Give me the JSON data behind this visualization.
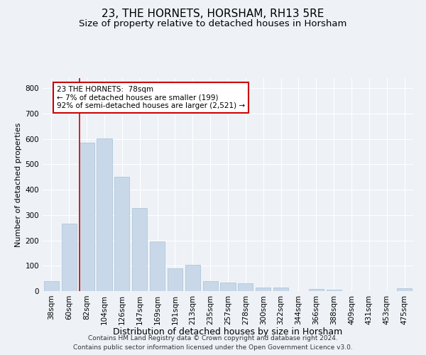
{
  "title": "23, THE HORNETS, HORSHAM, RH13 5RE",
  "subtitle": "Size of property relative to detached houses in Horsham",
  "xlabel": "Distribution of detached houses by size in Horsham",
  "ylabel": "Number of detached properties",
  "categories": [
    "38sqm",
    "60sqm",
    "82sqm",
    "104sqm",
    "126sqm",
    "147sqm",
    "169sqm",
    "191sqm",
    "213sqm",
    "235sqm",
    "257sqm",
    "278sqm",
    "300sqm",
    "322sqm",
    "344sqm",
    "366sqm",
    "388sqm",
    "409sqm",
    "431sqm",
    "453sqm",
    "475sqm"
  ],
  "values": [
    38,
    265,
    585,
    603,
    450,
    328,
    197,
    90,
    103,
    38,
    35,
    32,
    13,
    13,
    0,
    8,
    7,
    0,
    0,
    0,
    10
  ],
  "bar_color": "#c8d8e8",
  "bar_edgecolor": "#a8c0d4",
  "vline_x_index": 2,
  "vline_color": "#cc0000",
  "annotation_text": "23 THE HORNETS:  78sqm\n← 7% of detached houses are smaller (199)\n92% of semi-detached houses are larger (2,521) →",
  "annotation_box_facecolor": "#ffffff",
  "annotation_box_edgecolor": "#cc0000",
  "ylim": [
    0,
    840
  ],
  "yticks": [
    0,
    100,
    200,
    300,
    400,
    500,
    600,
    700,
    800
  ],
  "background_color": "#eef2f7",
  "plot_background": "#eef2f7",
  "grid_color": "#ffffff",
  "footer_line1": "Contains HM Land Registry data © Crown copyright and database right 2024.",
  "footer_line2": "Contains public sector information licensed under the Open Government Licence v3.0.",
  "title_fontsize": 11,
  "subtitle_fontsize": 9.5,
  "xlabel_fontsize": 9,
  "ylabel_fontsize": 8,
  "tick_fontsize": 7.5,
  "annot_fontsize": 7.5,
  "footer_fontsize": 6.5
}
